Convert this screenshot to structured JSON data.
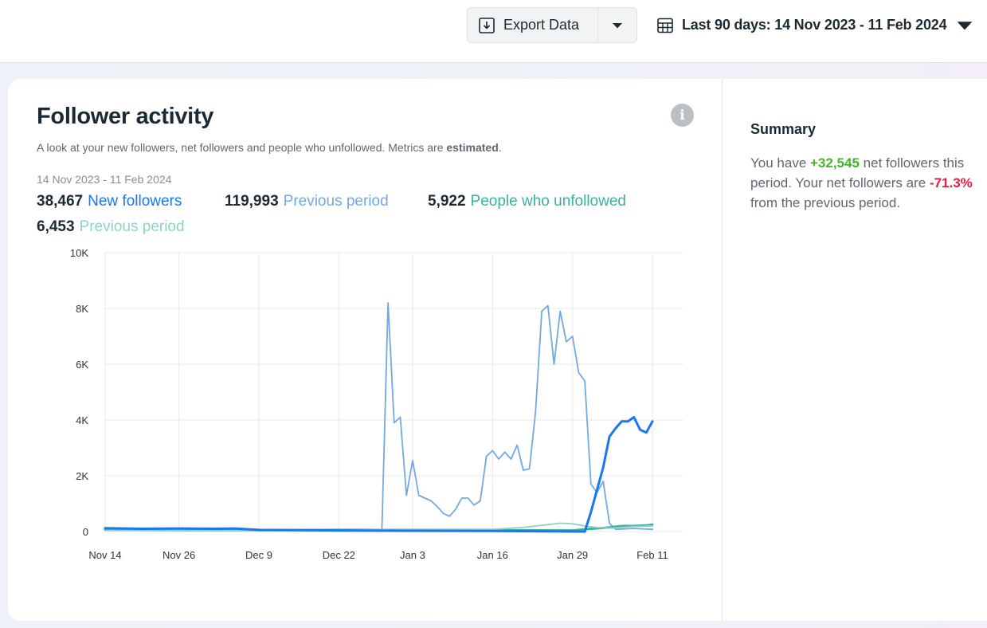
{
  "toolbar": {
    "export_label": "Export Data",
    "date_range_label": "Last 90 days: 14 Nov 2023 - 11 Feb 2024"
  },
  "card": {
    "title": "Follower activity",
    "subtitle_prefix": "A look at your new followers, net followers and people who unfollowed. Metrics are ",
    "subtitle_bold": "estimated",
    "subtitle_suffix": ".",
    "date_range": "14 Nov 2023 - 11 Feb 2024",
    "metrics": [
      {
        "value": "38,467",
        "label": "New followers",
        "color": "#1877f2"
      },
      {
        "value": "119,993",
        "label": "Previous period",
        "color": "#74a8e0"
      },
      {
        "value": "5,922",
        "label": "People who unfollowed",
        "color": "#3ab29b"
      },
      {
        "value": "6,453",
        "label": "Previous period",
        "color": "#8fd3c4"
      }
    ]
  },
  "summary": {
    "title": "Summary",
    "text_1": "You have ",
    "net_value": "+32,545",
    "text_2": " net followers this period. Your net followers are ",
    "change_value": "-71.3%",
    "text_3": " from the previous period."
  },
  "icons": {
    "export": "download-icon",
    "caret": "caret-down-icon",
    "calendar": "calendar-icon",
    "info": "info-icon"
  },
  "chart_data": {
    "type": "line",
    "x_tick_labels": [
      "Nov 14",
      "Nov 26",
      "Dec 9",
      "Dec 22",
      "Jan 3",
      "Jan 16",
      "Jan 29",
      "Feb 11"
    ],
    "y_tick_labels": [
      "0",
      "2K",
      "4K",
      "6K",
      "8K",
      "10K"
    ],
    "ylim": [
      0,
      10000
    ],
    "grid": true,
    "series": [
      {
        "name": "Previous period",
        "color": "#74a8e0",
        "stroke": 1.8,
        "points": [
          [
            "Nov 14",
            60
          ],
          [
            "Nov 26",
            60
          ],
          [
            "Dec 9",
            50
          ],
          [
            "Dec 22",
            50
          ],
          [
            "Dec 29",
            60
          ],
          [
            "Dec 30",
            8200
          ],
          [
            "Dec 31",
            3900
          ],
          [
            "Jan 1",
            4100
          ],
          [
            "Jan 2",
            1300
          ],
          [
            "Jan 3",
            2550
          ],
          [
            "Jan 4",
            1300
          ],
          [
            "Jan 5",
            1200
          ],
          [
            "Jan 6",
            1100
          ],
          [
            "Jan 7",
            900
          ],
          [
            "Jan 8",
            650
          ],
          [
            "Jan 9",
            550
          ],
          [
            "Jan 10",
            800
          ],
          [
            "Jan 11",
            1200
          ],
          [
            "Jan 12",
            1200
          ],
          [
            "Jan 13",
            950
          ],
          [
            "Jan 14",
            1100
          ],
          [
            "Jan 15",
            2700
          ],
          [
            "Jan 16",
            2900
          ],
          [
            "Jan 17",
            2600
          ],
          [
            "Jan 18",
            2850
          ],
          [
            "Jan 19",
            2600
          ],
          [
            "Jan 20",
            3100
          ],
          [
            "Jan 21",
            2200
          ],
          [
            "Jan 22",
            2250
          ],
          [
            "Jan 23",
            4300
          ],
          [
            "Jan 24",
            7900
          ],
          [
            "Jan 25",
            8100
          ],
          [
            "Jan 26",
            6000
          ],
          [
            "Jan 27",
            7900
          ],
          [
            "Jan 28",
            6800
          ],
          [
            "Jan 29",
            7000
          ],
          [
            "Jan 30",
            5700
          ],
          [
            "Jan 31",
            5400
          ],
          [
            "Feb 1",
            1700
          ],
          [
            "Feb 2",
            1400
          ],
          [
            "Feb 3",
            1800
          ],
          [
            "Feb 4",
            300
          ],
          [
            "Feb 5",
            80
          ],
          [
            "Feb 6",
            90
          ],
          [
            "Feb 7",
            100
          ],
          [
            "Feb 8",
            110
          ],
          [
            "Feb 9",
            100
          ],
          [
            "Feb 10",
            90
          ],
          [
            "Feb 11",
            80
          ]
        ]
      },
      {
        "name": "People who unfollowed",
        "color": "#3ab29b",
        "stroke": 3,
        "points": [
          [
            "Nov 14",
            60
          ],
          [
            "Nov 26",
            50
          ],
          [
            "Dec 9",
            50
          ],
          [
            "Dec 22",
            60
          ],
          [
            "Jan 3",
            60
          ],
          [
            "Jan 16",
            50
          ],
          [
            "Jan 29",
            40
          ],
          [
            "Feb 1",
            100
          ],
          [
            "Feb 4",
            150
          ],
          [
            "Feb 6",
            200
          ],
          [
            "Feb 8",
            200
          ],
          [
            "Feb 10",
            220
          ],
          [
            "Feb 11",
            250
          ]
        ]
      },
      {
        "name": "Previous period",
        "color": "#8fd3c4",
        "stroke": 1.8,
        "points": [
          [
            "Nov 14",
            40
          ],
          [
            "Nov 26",
            40
          ],
          [
            "Dec 9",
            40
          ],
          [
            "Dec 22",
            40
          ],
          [
            "Dec 30",
            80
          ],
          [
            "Jan 3",
            80
          ],
          [
            "Jan 16",
            80
          ],
          [
            "Jan 21",
            150
          ],
          [
            "Jan 23",
            200
          ],
          [
            "Jan 25",
            250
          ],
          [
            "Jan 27",
            300
          ],
          [
            "Jan 29",
            280
          ],
          [
            "Jan 31",
            200
          ],
          [
            "Feb 2",
            150
          ],
          [
            "Feb 4",
            120
          ],
          [
            "Feb 6",
            150
          ],
          [
            "Feb 8",
            180
          ],
          [
            "Feb 11",
            200
          ]
        ]
      },
      {
        "name": "New followers",
        "color": "#1877f2",
        "stroke": 3,
        "points": [
          [
            "Nov 14",
            120
          ],
          [
            "Nov 20",
            100
          ],
          [
            "Nov 26",
            110
          ],
          [
            "Dec 2",
            100
          ],
          [
            "Dec 5",
            110
          ],
          [
            "Dec 9",
            60
          ],
          [
            "Dec 22",
            40
          ],
          [
            "Jan 3",
            30
          ],
          [
            "Jan 16",
            20
          ],
          [
            "Jan 31",
            0
          ],
          [
            "Feb 1",
            700
          ],
          [
            "Feb 2",
            1500
          ],
          [
            "Feb 3",
            2300
          ],
          [
            "Feb 4",
            3400
          ],
          [
            "Feb 5",
            3700
          ],
          [
            "Feb 6",
            3950
          ],
          [
            "Feb 7",
            3950
          ],
          [
            "Feb 8",
            4100
          ],
          [
            "Feb 9",
            3650
          ],
          [
            "Feb 10",
            3550
          ],
          [
            "Feb 11",
            3950
          ]
        ]
      }
    ]
  }
}
